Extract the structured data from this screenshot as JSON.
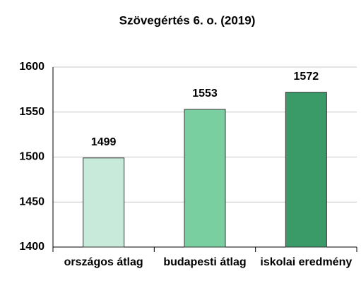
{
  "chart_data": {
    "type": "bar",
    "title": "Szövegértés 6. o. (2019)",
    "categories": [
      "országos átlag",
      "budapesti átlag",
      "iskolai eredmény"
    ],
    "values": [
      1499,
      1553,
      1572
    ],
    "colors": [
      "#c8eadb",
      "#7acfa0",
      "#3a9a68"
    ],
    "ylim": [
      1400,
      1600
    ],
    "yticks": [
      1400,
      1450,
      1500,
      1550,
      1600
    ],
    "grid": true
  }
}
